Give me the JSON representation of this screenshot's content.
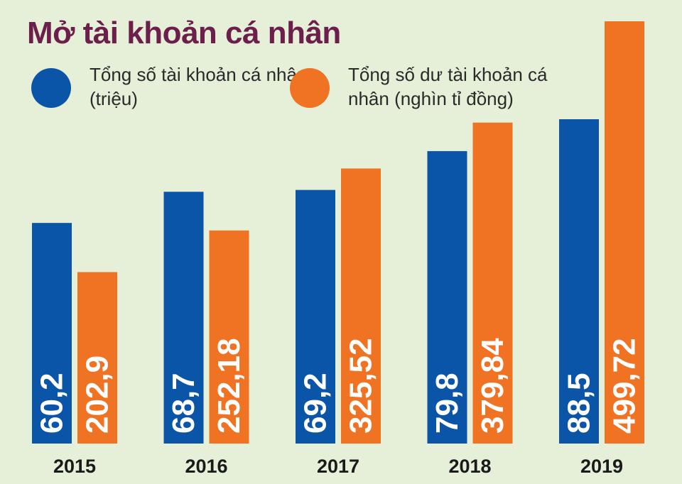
{
  "chart_data": {
    "type": "bar",
    "title": "Mở tài khoản cá nhân",
    "categories": [
      "2015",
      "2016",
      "2017",
      "2018",
      "2019"
    ],
    "series": [
      {
        "name": "Tổng số tài khoản cá nhân (triệu)",
        "values": [
          60.2,
          68.7,
          69.2,
          79.8,
          88.5
        ],
        "labels": [
          "60,2",
          "68,7",
          "69,2",
          "79,8",
          "88,5"
        ],
        "color": "#0a55a8"
      },
      {
        "name": "Tổng số dư tài khoản cá nhân (nghìn tỉ đồng)",
        "values": [
          202.9,
          252.18,
          325.52,
          379.84,
          499.72
        ],
        "labels": [
          "202,9",
          "252,18",
          "325,52",
          "379,84",
          "499,72"
        ],
        "color": "#f07223"
      }
    ],
    "xlabel": "",
    "ylabel": "",
    "grid": false,
    "legend": "top"
  }
}
